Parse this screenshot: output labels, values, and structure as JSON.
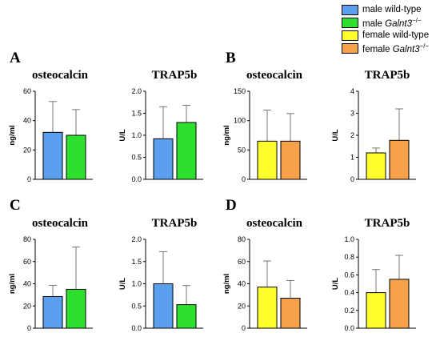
{
  "legend": {
    "items": [
      {
        "label": "male wild-type",
        "gene": "",
        "sup": "",
        "color": "#5aa0ef"
      },
      {
        "label": "male ",
        "gene": "Galnt3",
        "sup": "−/−",
        "color": "#2ee02e"
      },
      {
        "label": "female wild-type",
        "gene": "",
        "sup": "",
        "color": "#ffff2e"
      },
      {
        "label": "female ",
        "gene": "Galnt3",
        "sup": "−/−",
        "color": "#f7a14a"
      }
    ]
  },
  "chart_data": [
    {
      "type": "bar",
      "panel_label": "A",
      "title": "osteocalcin",
      "ylabel": "ng/ml",
      "ylim": [
        0,
        60
      ],
      "yticks": [
        "0",
        "20",
        "40",
        "60"
      ],
      "series": [
        {
          "value": 32,
          "error": 21,
          "color": "#5aa0ef"
        },
        {
          "value": 30,
          "error": 17.5,
          "color": "#2ee02e"
        }
      ]
    },
    {
      "type": "bar",
      "panel_label": "",
      "title": "TRAP5b",
      "ylabel": "U/L",
      "ylim": [
        0,
        2.0
      ],
      "yticks": [
        "0.0",
        "0.5",
        "1.0",
        "1.5",
        "2.0"
      ],
      "series": [
        {
          "value": 0.92,
          "error": 0.73,
          "color": "#5aa0ef"
        },
        {
          "value": 1.29,
          "error": 0.39,
          "color": "#2ee02e"
        }
      ]
    },
    {
      "type": "bar",
      "panel_label": "B",
      "title": "osteocalcin",
      "ylabel": "ng/ml",
      "ylim": [
        0,
        150
      ],
      "yticks": [
        "0",
        "50",
        "100",
        "150"
      ],
      "series": [
        {
          "value": 65,
          "error": 53,
          "color": "#ffff2e"
        },
        {
          "value": 65,
          "error": 47,
          "color": "#f7a14a"
        }
      ]
    },
    {
      "type": "bar",
      "panel_label": "",
      "title": "TRAP5b",
      "ylabel": "U/L",
      "ylim": [
        0,
        4
      ],
      "yticks": [
        "0",
        "1",
        "2",
        "3",
        "4"
      ],
      "series": [
        {
          "value": 1.2,
          "error": 0.22,
          "color": "#ffff2e"
        },
        {
          "value": 1.77,
          "error": 1.43,
          "color": "#f7a14a"
        }
      ]
    },
    {
      "type": "bar",
      "panel_label": "C",
      "title": "osteocalcin",
      "ylabel": "ng/ml",
      "ylim": [
        0,
        80
      ],
      "yticks": [
        "0",
        "20",
        "40",
        "60",
        "80"
      ],
      "series": [
        {
          "value": 28.5,
          "error": 10,
          "color": "#5aa0ef"
        },
        {
          "value": 35,
          "error": 38,
          "color": "#2ee02e"
        }
      ]
    },
    {
      "type": "bar",
      "panel_label": "",
      "title": "TRAP5b",
      "ylabel": "U/L",
      "ylim": [
        0,
        2.0
      ],
      "yticks": [
        "0.0",
        "0.5",
        "1.0",
        "1.5",
        "2.0"
      ],
      "series": [
        {
          "value": 1.0,
          "error": 0.72,
          "color": "#5aa0ef"
        },
        {
          "value": 0.53,
          "error": 0.43,
          "color": "#2ee02e"
        }
      ]
    },
    {
      "type": "bar",
      "panel_label": "D",
      "title": "osteocalcin",
      "ylabel": "ng/ml",
      "ylim": [
        0,
        80
      ],
      "yticks": [
        "0",
        "20",
        "40",
        "60",
        "80"
      ],
      "series": [
        {
          "value": 37,
          "error": 23.5,
          "color": "#ffff2e"
        },
        {
          "value": 27,
          "error": 16,
          "color": "#f7a14a"
        }
      ]
    },
    {
      "type": "bar",
      "panel_label": "",
      "title": "TRAP5b",
      "ylabel": "U/L",
      "ylim": [
        0,
        1.0
      ],
      "yticks": [
        "0.0",
        "0.2",
        "0.4",
        "0.6",
        "0.8",
        "1.0"
      ],
      "series": [
        {
          "value": 0.4,
          "error": 0.26,
          "color": "#ffff2e"
        },
        {
          "value": 0.55,
          "error": 0.27,
          "color": "#f7a14a"
        }
      ]
    }
  ]
}
